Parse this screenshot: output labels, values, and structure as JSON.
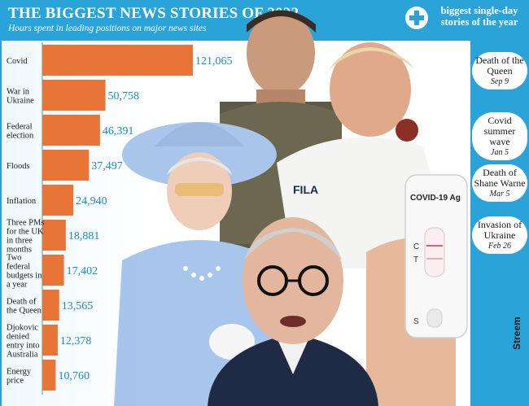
{
  "header": {
    "title": "THE BIGGEST NEWS STORIES OF 2022",
    "subtitle": "Hours spent in leading positions on major news sites"
  },
  "chart_data": {
    "type": "bar",
    "orientation": "horizontal",
    "categories": [
      "Covid",
      "War in Ukraine",
      "Federal election",
      "Floods",
      "Inflation",
      "Three PMs for the UK in three months",
      "Two federal budgets in a year",
      "Death of the Queen",
      "Djokovic denied entry into Australia",
      "Energy price"
    ],
    "category_lines": [
      [
        "Covid"
      ],
      [
        "War in",
        "Ukraine"
      ],
      [
        "Federal",
        "election"
      ],
      [
        "Floods"
      ],
      [
        "Inflation"
      ],
      [
        "Three PMs",
        "for the UK",
        "in three",
        "months"
      ],
      [
        "Two",
        "federal",
        "budgets in",
        "a year"
      ],
      [
        "Death of",
        "the Queen"
      ],
      [
        "Djokovic",
        "denied",
        "entry into",
        "Australia"
      ],
      [
        "Energy",
        "price"
      ]
    ],
    "values": [
      121065,
      50758,
      46391,
      37497,
      24940,
      18881,
      17402,
      13565,
      12378,
      10760
    ],
    "value_labels": [
      "121,065",
      "50,758",
      "46,391",
      "37,497",
      "24,940",
      "18,881",
      "17,402",
      "13,565",
      "12,378",
      "10,760"
    ],
    "bar_color": "#e87438",
    "value_label_color": "#1a8cc7",
    "title": "THE BIGGEST NEWS STORIES OF 2022",
    "subtitle": "Hours spent in leading positions on major news sites",
    "xlim": [
      0,
      125000
    ],
    "grid": false,
    "legend": "none"
  },
  "side": {
    "header": "biggest single-day stories of the year",
    "icon": "plus-icon",
    "items": [
      {
        "label": "Death of the Queen",
        "date": "Sep 9"
      },
      {
        "label": "Covid summer wave",
        "date": "Jan 5"
      },
      {
        "label": "Death of Shane Warne",
        "date": "Mar 5"
      },
      {
        "label": "Invasion of Ukraine",
        "date": "Feb 26"
      }
    ]
  },
  "collage": {
    "test_label": "COVID-19 Ag",
    "test_c": "C",
    "test_t": "T",
    "test_s": "S",
    "shirt_brand": "FILA",
    "brand": "Streem"
  },
  "colors": {
    "accent": "#2aa3d9",
    "bar": "#e87438",
    "value_text": "#1a8cc7"
  }
}
